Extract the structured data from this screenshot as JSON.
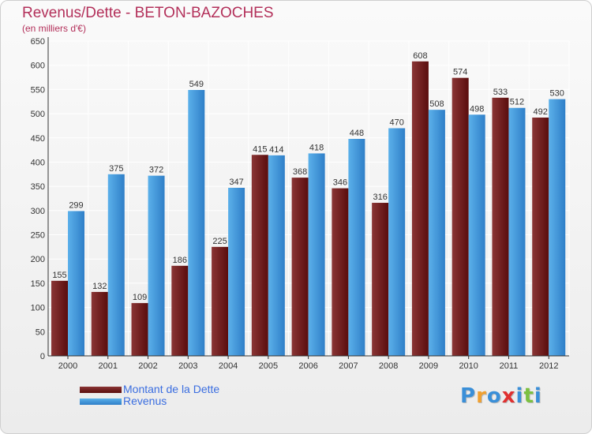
{
  "chart_data": {
    "type": "bar",
    "title": "Revenus/Dette - BETON-BAZOCHES",
    "subtitle": "(en milliers d'€)",
    "categories": [
      "2000",
      "2001",
      "2002",
      "2003",
      "2004",
      "2005",
      "2006",
      "2007",
      "2008",
      "2009",
      "2010",
      "2011",
      "2012"
    ],
    "series": [
      {
        "name": "Montant de la Dette",
        "values": [
          155,
          132,
          109,
          186,
          225,
          415,
          368,
          346,
          316,
          608,
          574,
          533,
          492
        ]
      },
      {
        "name": "Revenus",
        "values": [
          299,
          375,
          372,
          549,
          347,
          414,
          418,
          448,
          470,
          508,
          498,
          512,
          530
        ]
      }
    ],
    "ylim": [
      0,
      650
    ],
    "yticks": [
      0,
      50,
      100,
      150,
      200,
      250,
      300,
      350,
      400,
      450,
      500,
      550,
      600,
      650
    ],
    "grid": true,
    "legend_position": "bottom-left",
    "colors": {
      "debt": "#6e1414",
      "debt_light": "#8a3a3a",
      "revenue": "#3a8fd8",
      "revenue_light": "#5bb0ea",
      "title": "#b3305a",
      "legend_text": "#3b6ee0"
    }
  },
  "logo": {
    "letters": [
      "P",
      "r",
      "o",
      "x",
      "i",
      "t",
      "i"
    ],
    "colors": [
      "#3a8fd8",
      "#f0a030",
      "#3a8fd8",
      "#e03030",
      "#3a8fd8",
      "#7cc040",
      "#3a8fd8"
    ]
  }
}
